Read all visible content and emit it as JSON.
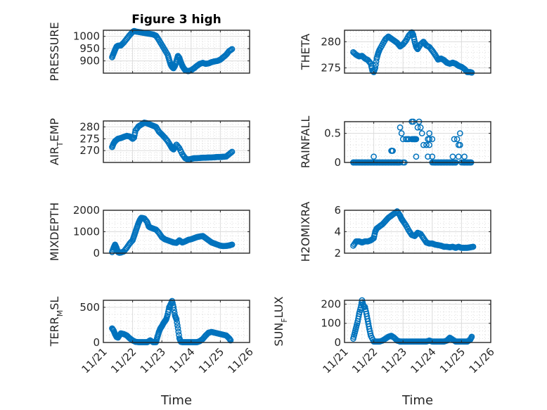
{
  "figure": {
    "title": "Figure 3 high",
    "marker_color": "#0072BD",
    "marker": "circle-open"
  },
  "chart_data": [
    {
      "type": "scatter",
      "position": "row1-left",
      "title": "Figure 3 high",
      "xlabel": "",
      "ylabel": "PRESSURE",
      "ylabel_parts": [
        [
          "PRESSURE",
          ""
        ]
      ],
      "xlim": [
        0,
        5
      ],
      "x_ticks": [
        "11/21",
        "11/22",
        "11/23",
        "11/24",
        "11/25",
        "11/26"
      ],
      "ylim": [
        850,
        1025
      ],
      "y_ticks": [
        900,
        950,
        1000
      ],
      "grid": true,
      "x": [
        0.3,
        0.35,
        0.4,
        0.45,
        0.5,
        0.6,
        0.7,
        0.8,
        0.9,
        1.0,
        1.05,
        1.1,
        1.2,
        1.3,
        1.4,
        1.5,
        1.6,
        1.7,
        1.8,
        1.9,
        2.0,
        2.1,
        2.2,
        2.25,
        2.3,
        2.35,
        2.4,
        2.45,
        2.5,
        2.55,
        2.6,
        2.65,
        2.7,
        2.75,
        2.8,
        2.9,
        3.0,
        3.1,
        3.2,
        3.3,
        3.4,
        3.5,
        3.6,
        3.7,
        3.8,
        3.9,
        4.0,
        4.1,
        4.2,
        4.3,
        4.4
      ],
      "y": [
        915,
        930,
        945,
        958,
        962,
        963,
        975,
        990,
        1005,
        1018,
        1022,
        1020,
        1018,
        1016,
        1014,
        1012,
        1010,
        1008,
        1003,
        985,
        965,
        945,
        925,
        905,
        885,
        875,
        870,
        880,
        900,
        920,
        912,
        895,
        880,
        870,
        862,
        858,
        862,
        870,
        880,
        888,
        892,
        888,
        890,
        895,
        898,
        900,
        905,
        915,
        925,
        940,
        948
      ]
    },
    {
      "type": "scatter",
      "position": "row1-right",
      "xlabel": "",
      "ylabel": "THETA",
      "xlim": [
        0,
        5
      ],
      "x_ticks": [
        "11/21",
        "11/22",
        "11/23",
        "11/24",
        "11/25",
        "11/26"
      ],
      "ylim": [
        274,
        282.2
      ],
      "y_ticks": [
        275,
        280
      ],
      "grid": true,
      "x": [
        0.3,
        0.4,
        0.5,
        0.6,
        0.7,
        0.8,
        0.9,
        0.95,
        1.0,
        1.05,
        1.1,
        1.15,
        1.2,
        1.3,
        1.4,
        1.5,
        1.6,
        1.7,
        1.8,
        1.9,
        2.0,
        2.1,
        2.2,
        2.3,
        2.35,
        2.4,
        2.45,
        2.5,
        2.6,
        2.7,
        2.8,
        2.9,
        3.0,
        3.1,
        3.2,
        3.3,
        3.4,
        3.5,
        3.6,
        3.7,
        3.8,
        3.9,
        4.0,
        4.1,
        4.2,
        4.3,
        4.35
      ],
      "y": [
        278,
        277.5,
        277.2,
        277.3,
        276.8,
        276.5,
        275.8,
        274.5,
        274.2,
        275,
        276.8,
        277.8,
        278.5,
        279.5,
        280.5,
        281,
        280.6,
        280.2,
        279.8,
        279.1,
        279.5,
        280.2,
        281.2,
        281.8,
        281.3,
        280,
        279,
        278.6,
        279.5,
        280,
        279.3,
        279,
        278.3,
        277.5,
        276.6,
        276.8,
        276.5,
        276,
        275.8,
        276,
        275.8,
        275.4,
        275.2,
        274.8,
        274.2,
        274.2,
        274.1
      ]
    },
    {
      "type": "scatter",
      "position": "row2-left",
      "xlabel": "",
      "ylabel": "AIR_TEMP",
      "ylabel_display": {
        "main": "AIR",
        "sub": "T",
        "rest": "EMP"
      },
      "xlim": [
        0,
        5
      ],
      "x_ticks": [
        "11/21",
        "11/22",
        "11/23",
        "11/24",
        "11/25",
        "11/26"
      ],
      "ylim": [
        265,
        282.5
      ],
      "y_ticks": [
        270,
        275,
        280
      ],
      "grid": true,
      "x": [
        0.3,
        0.35,
        0.4,
        0.5,
        0.6,
        0.7,
        0.8,
        0.9,
        1.0,
        1.05,
        1.1,
        1.2,
        1.3,
        1.4,
        1.5,
        1.6,
        1.7,
        1.8,
        1.9,
        2.0,
        2.1,
        2.2,
        2.3,
        2.35,
        2.4,
        2.5,
        2.6,
        2.7,
        2.8,
        2.9,
        3.0,
        3.1,
        3.2,
        3.3,
        3.4,
        3.5,
        3.6,
        3.7,
        3.8,
        3.9,
        4.0,
        4.1,
        4.2,
        4.3,
        4.4
      ],
      "y": [
        271.5,
        273,
        274,
        275,
        275.3,
        275.8,
        276.2,
        276,
        275,
        275.5,
        278.5,
        280.2,
        281,
        281.8,
        281.5,
        281,
        280.5,
        280,
        278,
        276.8,
        275.5,
        274,
        272,
        271,
        270.5,
        272.5,
        271,
        268.5,
        266.8,
        266.2,
        266.5,
        266.8,
        266.8,
        266.9,
        267,
        267,
        267.1,
        267.1,
        267.2,
        267.3,
        267.3,
        267.4,
        267.5,
        268.5,
        269.5
      ]
    },
    {
      "type": "scatter",
      "position": "row2-right",
      "xlabel": "",
      "ylabel": "RAINFALL",
      "xlim": [
        0,
        5
      ],
      "x_ticks": [
        "11/21",
        "11/22",
        "11/23",
        "11/24",
        "11/25",
        "11/26"
      ],
      "ylim": [
        0,
        0.7
      ],
      "y_ticks": [
        0,
        0.5
      ],
      "grid": true,
      "x": [
        0.3,
        0.4,
        0.5,
        0.6,
        0.7,
        0.8,
        0.9,
        1.0,
        1.1,
        1.2,
        1.3,
        1.4,
        1.5,
        1.6,
        1.7,
        1.8,
        1.9,
        2.0,
        1.0,
        1.6,
        1.62,
        1.65,
        1.9,
        1.95,
        2.0,
        1.85,
        2.05,
        2.1,
        2.15,
        2.2,
        2.3,
        2.35,
        2.4,
        2.5,
        2.55,
        2.6,
        2.45,
        2.65,
        2.7,
        2.8,
        2.85,
        2.9,
        3.0,
        2.85,
        2.9,
        2.9,
        3.0,
        3.1,
        3.2,
        3.3,
        3.4,
        3.5,
        3.6,
        3.7,
        3.8,
        3.7,
        3.75,
        3.85,
        3.9,
        3.95,
        3.95,
        3.9,
        3.8,
        4.0,
        4.1,
        4.2,
        4.3,
        4.1
      ],
      "y": [
        0,
        0,
        0,
        0,
        0,
        0,
        0,
        0,
        0,
        0,
        0,
        0,
        0,
        0,
        0,
        0,
        0,
        0,
        0.1,
        0.2,
        0.2,
        0.2,
        0.6,
        0.5,
        0.4,
        0,
        0,
        0.4,
        0.4,
        0.4,
        0.7,
        0.7,
        0.4,
        0.6,
        0.7,
        0.6,
        0.1,
        0.5,
        0.3,
        0.3,
        0.4,
        0.4,
        0.4,
        0.1,
        0.5,
        0.3,
        0.1,
        0,
        0,
        0,
        0,
        0,
        0,
        0,
        0,
        0.1,
        0.4,
        0.4,
        0.3,
        0.3,
        0.5,
        0.1,
        0,
        0,
        0,
        0,
        0,
        0.1
      ]
    },
    {
      "type": "scatter",
      "position": "row3-left",
      "xlabel": "",
      "ylabel": "MIXDEPTH",
      "xlim": [
        0,
        5
      ],
      "x_ticks": [
        "11/21",
        "11/22",
        "11/23",
        "11/24",
        "11/25",
        "11/26"
      ],
      "ylim": [
        0,
        2000
      ],
      "y_ticks": [
        0,
        1000,
        2000
      ],
      "grid": true,
      "x": [
        0.3,
        0.35,
        0.4,
        0.45,
        0.5,
        0.55,
        0.6,
        0.7,
        0.8,
        0.9,
        1.0,
        1.05,
        1.1,
        1.15,
        1.2,
        1.25,
        1.3,
        1.4,
        1.5,
        1.55,
        1.6,
        1.7,
        1.8,
        1.9,
        2.0,
        2.1,
        2.2,
        2.3,
        2.4,
        2.5,
        2.6,
        2.7,
        2.8,
        2.9,
        3.0,
        3.1,
        3.2,
        3.3,
        3.4,
        3.5,
        3.6,
        3.7,
        3.8,
        3.9,
        4.0,
        4.1,
        4.2,
        4.3,
        4.4
      ],
      "y": [
        50,
        250,
        400,
        250,
        50,
        20,
        30,
        80,
        250,
        450,
        600,
        800,
        1000,
        1200,
        1400,
        1550,
        1650,
        1620,
        1450,
        1250,
        1200,
        1150,
        1100,
        950,
        750,
        650,
        600,
        550,
        500,
        480,
        600,
        500,
        550,
        620,
        650,
        700,
        750,
        780,
        800,
        700,
        600,
        500,
        450,
        400,
        350,
        330,
        340,
        360,
        400
      ]
    },
    {
      "type": "scatter",
      "position": "row3-right",
      "xlabel": "",
      "ylabel": "H2OMIXRA",
      "xlim": [
        0,
        5
      ],
      "x_ticks": [
        "11/21",
        "11/22",
        "11/23",
        "11/24",
        "11/25",
        "11/26"
      ],
      "ylim": [
        2,
        6
      ],
      "y_ticks": [
        2,
        4,
        6
      ],
      "grid": true,
      "x": [
        0.3,
        0.4,
        0.5,
        0.6,
        0.7,
        0.8,
        0.9,
        1.0,
        1.05,
        1.1,
        1.2,
        1.3,
        1.4,
        1.5,
        1.6,
        1.7,
        1.8,
        1.9,
        1.95,
        2.0,
        2.1,
        2.2,
        2.3,
        2.4,
        2.5,
        2.6,
        2.7,
        2.8,
        2.9,
        3.0,
        3.1,
        3.2,
        3.3,
        3.4,
        3.5,
        3.6,
        3.7,
        3.8,
        3.9,
        4.0,
        4.1,
        4.2,
        4.3,
        4.4
      ],
      "y": [
        2.7,
        3.1,
        3.1,
        3.0,
        3.1,
        3.1,
        3.2,
        3.4,
        4.0,
        4.3,
        4.5,
        4.7,
        5.0,
        5.3,
        5.5,
        5.7,
        5.9,
        5.5,
        5.2,
        5.0,
        4.6,
        4.1,
        3.7,
        3.6,
        3.9,
        3.8,
        3.4,
        3.0,
        2.9,
        2.9,
        2.8,
        2.75,
        2.7,
        2.6,
        2.6,
        2.55,
        2.6,
        2.5,
        2.6,
        2.5,
        2.5,
        2.5,
        2.55,
        2.6
      ]
    },
    {
      "type": "scatter",
      "position": "row4-left",
      "xlabel": "Time",
      "ylabel": "TERR_MSL",
      "ylabel_display": {
        "main": "TERR",
        "sub": "M",
        "rest": "SL"
      },
      "xlim": [
        0,
        5
      ],
      "x_ticks": [
        "11/21",
        "11/22",
        "11/23",
        "11/24",
        "11/25",
        "11/26"
      ],
      "ylim": [
        0,
        600
      ],
      "y_ticks": [
        0,
        500
      ],
      "grid": true,
      "x": [
        0.3,
        0.35,
        0.4,
        0.45,
        0.5,
        0.6,
        0.7,
        0.8,
        0.9,
        1.0,
        1.1,
        1.2,
        1.3,
        1.4,
        1.5,
        1.6,
        1.7,
        1.8,
        1.85,
        1.9,
        1.95,
        2.0,
        2.05,
        2.1,
        2.15,
        2.2,
        2.25,
        2.3,
        2.35,
        2.4,
        2.45,
        2.5,
        2.55,
        2.6,
        2.65,
        2.7,
        2.8,
        2.9,
        3.0,
        3.1,
        3.2,
        3.3,
        3.4,
        3.5,
        3.6,
        3.7,
        3.8,
        3.9,
        4.0,
        4.1,
        4.2,
        4.3,
        4.35
      ],
      "y": [
        200,
        170,
        120,
        80,
        70,
        130,
        120,
        100,
        60,
        30,
        10,
        5,
        5,
        5,
        5,
        30,
        5,
        5,
        80,
        150,
        200,
        230,
        270,
        300,
        330,
        400,
        500,
        540,
        590,
        500,
        380,
        330,
        200,
        60,
        10,
        5,
        5,
        5,
        5,
        5,
        5,
        20,
        50,
        100,
        140,
        150,
        140,
        130,
        120,
        110,
        100,
        60,
        30
      ]
    },
    {
      "type": "scatter",
      "position": "row4-right",
      "xlabel": "Time",
      "ylabel": "SUN_FLUX",
      "ylabel_display": {
        "main": "SUN",
        "sub": "F",
        "rest": "LUX"
      },
      "xlim": [
        0,
        5
      ],
      "x_ticks": [
        "11/21",
        "11/22",
        "11/23",
        "11/24",
        "11/25",
        "11/26"
      ],
      "ylim": [
        0,
        220
      ],
      "y_ticks": [
        0,
        100,
        200
      ],
      "grid": true,
      "x": [
        0.3,
        0.35,
        0.4,
        0.45,
        0.5,
        0.55,
        0.6,
        0.65,
        0.7,
        0.75,
        0.8,
        0.85,
        0.9,
        1.0,
        1.1,
        1.2,
        1.3,
        1.4,
        1.5,
        1.6,
        1.7,
        1.8,
        1.9,
        2.0,
        2.1,
        2.2,
        2.3,
        2.4,
        2.5,
        2.6,
        2.7,
        2.8,
        2.9,
        3.0,
        3.1,
        3.2,
        3.3,
        3.4,
        3.5,
        3.6,
        3.7,
        3.8,
        3.9,
        4.0,
        4.1,
        4.2,
        4.3,
        4.35
      ],
      "y": [
        20,
        50,
        80,
        110,
        150,
        180,
        220,
        190,
        185,
        150,
        110,
        70,
        35,
        5,
        5,
        5,
        10,
        20,
        30,
        35,
        25,
        10,
        5,
        5,
        5,
        5,
        5,
        5,
        5,
        5,
        5,
        5,
        10,
        5,
        5,
        5,
        5,
        5,
        10,
        25,
        15,
        5,
        5,
        5,
        5,
        5,
        15,
        30
      ]
    }
  ]
}
